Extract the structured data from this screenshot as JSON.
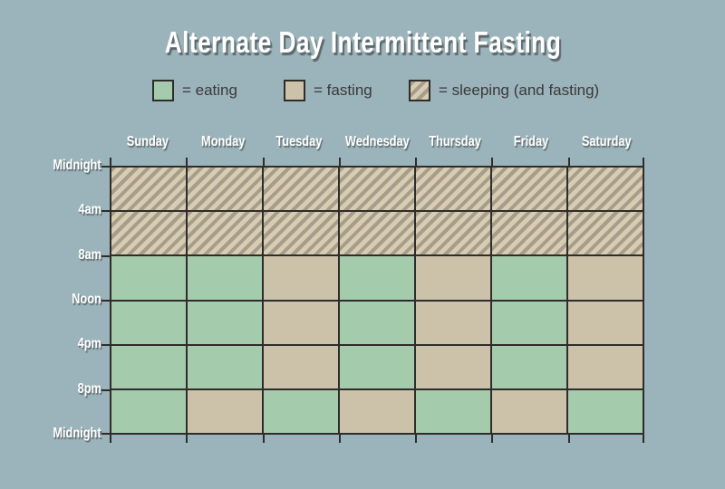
{
  "title": "Alternate Day Intermittent Fasting",
  "legend": {
    "items": [
      {
        "key": "eating",
        "label": "= eating"
      },
      {
        "key": "fasting",
        "label": "= fasting"
      },
      {
        "key": "sleeping",
        "label": "= sleeping (and fasting)"
      }
    ]
  },
  "chart_data": {
    "type": "heatmap",
    "title": "Alternate Day Intermittent Fasting",
    "x_categories": [
      "Sunday",
      "Monday",
      "Tuesday",
      "Wednesday",
      "Thursday",
      "Friday",
      "Saturday"
    ],
    "y_ticks": [
      "Midnight",
      "4am",
      "8am",
      "Noon",
      "4pm",
      "8pm",
      "Midnight"
    ],
    "legend_entries": [
      "= eating",
      "= fasting",
      "= sleeping (and fasting)"
    ],
    "legend_position": "top",
    "grid": true,
    "rows": [
      [
        "sleeping",
        "sleeping",
        "sleeping",
        "sleeping",
        "sleeping",
        "sleeping",
        "sleeping"
      ],
      [
        "sleeping",
        "sleeping",
        "sleeping",
        "sleeping",
        "sleeping",
        "sleeping",
        "sleeping"
      ],
      [
        "eating",
        "eating",
        "fasting",
        "eating",
        "fasting",
        "eating",
        "fasting"
      ],
      [
        "eating",
        "eating",
        "fasting",
        "eating",
        "fasting",
        "eating",
        "fasting"
      ],
      [
        "eating",
        "eating",
        "fasting",
        "eating",
        "fasting",
        "eating",
        "fasting"
      ],
      [
        "eating",
        "fasting",
        "eating",
        "fasting",
        "eating",
        "fasting",
        "eating"
      ]
    ]
  },
  "colors": {
    "background": "#9bb3ba",
    "eating": "#a5cbad",
    "fasting": "#cbc2a9",
    "sleeping_stripe_light": "#d8cdb3",
    "sleeping_stripe_dark": "#a69e8b",
    "grid_line": "#2e2d2b",
    "label_text": "#ffffff",
    "legend_text": "#3a3a3a"
  }
}
